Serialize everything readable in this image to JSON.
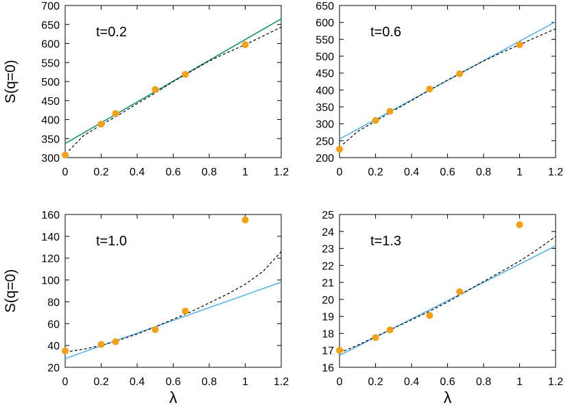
{
  "chart_data": [
    {
      "type": "scatter",
      "panel_label": "t=0.2",
      "ylabel": "S(q=0)",
      "xlabel": "",
      "xlim": [
        0,
        1.2
      ],
      "ylim": [
        300,
        700
      ],
      "xticks": [
        0,
        0.2,
        0.4,
        0.6,
        0.8,
        1,
        1.2
      ],
      "xtick_labels": [
        "0",
        "0.2",
        "0.4",
        "0.6",
        "0.8",
        "1",
        "1.2"
      ],
      "yticks": [
        300,
        350,
        400,
        450,
        500,
        550,
        600,
        650,
        700
      ],
      "ytick_labels": [
        "300",
        "350",
        "400",
        "450",
        "500",
        "550",
        "600",
        "650",
        "700"
      ],
      "points": {
        "x": [
          0,
          0.2,
          0.28,
          0.5,
          0.667,
          1.0
        ],
        "y": [
          307,
          388,
          416,
          479,
          519,
          597
        ]
      },
      "solid_fit": {
        "x": [
          0,
          1.2
        ],
        "y": [
          337,
          665
        ]
      },
      "dashed_fit": {
        "x": [
          0.02,
          0.1,
          0.2,
          0.3,
          0.4,
          0.5,
          0.6,
          0.7,
          0.8,
          0.9,
          1.0,
          1.1,
          1.2
        ],
        "y": [
          318,
          357,
          386,
          413,
          442,
          470,
          500,
          527,
          554,
          576,
          597,
          620,
          643
        ]
      },
      "colors": {
        "points": "#f5a015",
        "solid_fit": "#14936b",
        "dashed_fit": "#000000"
      }
    },
    {
      "type": "scatter",
      "panel_label": "t=0.6",
      "ylabel": "",
      "xlabel": "",
      "xlim": [
        0,
        1.2
      ],
      "ylim": [
        200,
        650
      ],
      "xticks": [
        0,
        0.2,
        0.4,
        0.6,
        0.8,
        1,
        1.2
      ],
      "xtick_labels": [
        "0",
        "0.2",
        "0.4",
        "0.6",
        "0.8",
        "1",
        "1.2"
      ],
      "yticks": [
        200,
        250,
        300,
        350,
        400,
        450,
        500,
        550,
        600,
        650
      ],
      "ytick_labels": [
        "200",
        "250",
        "300",
        "350",
        "400",
        "450",
        "500",
        "550",
        "600",
        "650"
      ],
      "points": {
        "x": [
          0,
          0.2,
          0.28,
          0.5,
          0.667,
          1.0
        ],
        "y": [
          225,
          310,
          337,
          403,
          448,
          534
        ]
      },
      "solid_fit": {
        "x": [
          0,
          1.2
        ],
        "y": [
          255,
          602
        ]
      },
      "dashed_fit": {
        "x": [
          0.02,
          0.1,
          0.2,
          0.3,
          0.4,
          0.5,
          0.6,
          0.7,
          0.8,
          0.9,
          1.0,
          1.1,
          1.2
        ],
        "y": [
          240,
          277,
          308,
          339,
          369,
          400,
          429,
          458,
          486,
          511,
          534,
          558,
          581
        ]
      },
      "colors": {
        "points": "#f5a015",
        "solid_fit": "#56b4e9",
        "dashed_fit": "#000000"
      }
    },
    {
      "type": "scatter",
      "panel_label": "t=1.0",
      "ylabel": "S(q=0)",
      "xlabel": "λ",
      "xlim": [
        0,
        1.2
      ],
      "ylim": [
        20,
        160
      ],
      "xticks": [
        0,
        0.2,
        0.4,
        0.6,
        0.8,
        1,
        1.2
      ],
      "xtick_labels": [
        "0",
        "0.2",
        "0.4",
        "0.6",
        "0.8",
        "1",
        "1.2"
      ],
      "yticks": [
        20,
        40,
        60,
        80,
        100,
        120,
        140,
        160
      ],
      "ytick_labels": [
        "20",
        "40",
        "60",
        "80",
        "100",
        "120",
        "140",
        "160"
      ],
      "points": {
        "x": [
          0,
          0.2,
          0.28,
          0.5,
          0.667,
          1.0
        ],
        "y": [
          35,
          41,
          43.5,
          54.5,
          71.5,
          155
        ]
      },
      "solid_fit": {
        "x": [
          0,
          1.2
        ],
        "y": [
          28,
          98
        ]
      },
      "dashed_fit": {
        "x": [
          0,
          0.1,
          0.2,
          0.3,
          0.4,
          0.5,
          0.6,
          0.7,
          0.8,
          0.9,
          1.0,
          1.1,
          1.2
        ],
        "y": [
          34,
          36.5,
          40,
          45,
          50.5,
          57,
          64,
          71,
          79,
          87,
          96,
          108,
          126
        ]
      },
      "colors": {
        "points": "#f5a015",
        "solid_fit": "#56b4e9",
        "dashed_fit": "#000000"
      }
    },
    {
      "type": "scatter",
      "panel_label": "t=1.3",
      "ylabel": "",
      "xlabel": "λ",
      "xlim": [
        0,
        1.2
      ],
      "ylim": [
        16,
        25
      ],
      "xticks": [
        0,
        0.2,
        0.4,
        0.6,
        0.8,
        1,
        1.2
      ],
      "xtick_labels": [
        "0",
        "0.2",
        "0.4",
        "0.6",
        "0.8",
        "1",
        "1.2"
      ],
      "yticks": [
        16,
        17,
        18,
        19,
        20,
        21,
        22,
        23,
        24,
        25
      ],
      "ytick_labels": [
        "16",
        "17",
        "18",
        "19",
        "20",
        "21",
        "22",
        "23",
        "24",
        "25"
      ],
      "points": {
        "x": [
          0,
          0.2,
          0.28,
          0.5,
          0.667,
          1.0
        ],
        "y": [
          17.0,
          17.75,
          18.2,
          19.05,
          20.45,
          24.4
        ]
      },
      "solid_fit": {
        "x": [
          0,
          1.2
        ],
        "y": [
          16.7,
          23.15
        ]
      },
      "dashed_fit": {
        "x": [
          0,
          0.1,
          0.2,
          0.3,
          0.4,
          0.5,
          0.6,
          0.7,
          0.8,
          0.9,
          1.0,
          1.1,
          1.2
        ],
        "y": [
          16.85,
          17.3,
          17.8,
          18.3,
          18.8,
          19.3,
          19.85,
          20.45,
          21.05,
          21.65,
          22.25,
          22.95,
          23.7
        ]
      },
      "colors": {
        "points": "#f5a015",
        "solid_fit": "#56b4e9",
        "dashed_fit": "#000000"
      }
    }
  ]
}
